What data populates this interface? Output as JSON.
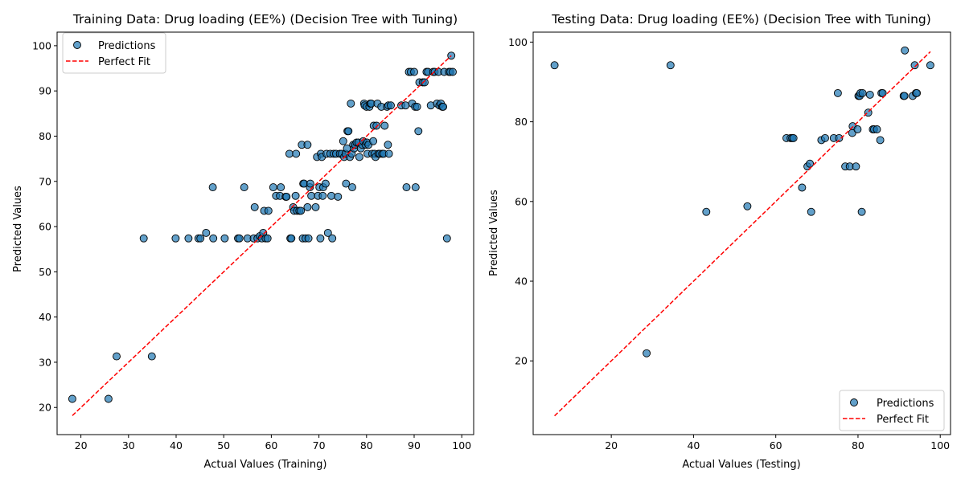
{
  "figure": {
    "background": "#ffffff"
  },
  "chart_data": [
    {
      "type": "scatter",
      "title": "Training Data: Drug loading (EE%) (Decision Tree with Tuning)",
      "xlabel": "Actual Values (Training)",
      "ylabel": "Predicted Values",
      "xlim": [
        15,
        102.5
      ],
      "ylim": [
        14,
        103
      ],
      "xticks": [
        20,
        30,
        40,
        50,
        60,
        70,
        80,
        90,
        100
      ],
      "yticks": [
        20,
        30,
        40,
        50,
        60,
        70,
        80,
        90,
        100
      ],
      "grid": false,
      "legend_position": "top-left",
      "legend": [
        "Predictions",
        "Perfect Fit"
      ],
      "fit_line": {
        "name": "Perfect Fit",
        "x": [
          18.2,
          97.8
        ],
        "y": [
          18.2,
          97.8
        ],
        "color": "#ff0000",
        "style": "dashed"
      },
      "series": [
        {
          "name": "Predictions",
          "color": "#1f77b4",
          "points": [
            [
              18.2,
              21.9
            ],
            [
              25.8,
              21.9
            ],
            [
              27.5,
              31.3
            ],
            [
              34.9,
              31.3
            ],
            [
              33.2,
              57.4
            ],
            [
              39.9,
              57.4
            ],
            [
              42.6,
              57.4
            ],
            [
              44.7,
              57.4
            ],
            [
              45.1,
              57.4
            ],
            [
              46.3,
              58.6
            ],
            [
              47.8,
              57.4
            ],
            [
              50.2,
              57.4
            ],
            [
              53.0,
              57.4
            ],
            [
              53.3,
              57.4
            ],
            [
              55.0,
              57.4
            ],
            [
              56.3,
              57.4
            ],
            [
              57.1,
              57.4
            ],
            [
              57.6,
              57.9
            ],
            [
              58.0,
              57.4
            ],
            [
              58.3,
              58.6
            ],
            [
              58.8,
              57.4
            ],
            [
              59.2,
              57.4
            ],
            [
              47.7,
              68.7
            ],
            [
              54.3,
              68.7
            ],
            [
              56.5,
              64.3
            ],
            [
              58.5,
              63.5
            ],
            [
              59.4,
              63.5
            ],
            [
              60.4,
              68.7
            ],
            [
              61.0,
              66.8
            ],
            [
              61.8,
              66.8
            ],
            [
              62.0,
              68.7
            ],
            [
              63.0,
              66.6
            ],
            [
              63.2,
              66.6
            ],
            [
              63.8,
              76.1
            ],
            [
              64.0,
              57.4
            ],
            [
              64.2,
              57.4
            ],
            [
              64.6,
              64.3
            ],
            [
              64.8,
              63.5
            ],
            [
              65.1,
              66.8
            ],
            [
              65.2,
              76.1
            ],
            [
              65.4,
              63.5
            ],
            [
              65.9,
              63.5
            ],
            [
              66.2,
              63.5
            ],
            [
              66.4,
              78.1
            ],
            [
              66.6,
              57.4
            ],
            [
              66.7,
              69.5
            ],
            [
              66.9,
              69.5
            ],
            [
              67.2,
              57.4
            ],
            [
              67.6,
              78.1
            ],
            [
              67.6,
              64.3
            ],
            [
              67.8,
              57.4
            ],
            [
              68.1,
              68.7
            ],
            [
              68.2,
              69.5
            ],
            [
              68.4,
              66.8
            ],
            [
              69.3,
              64.3
            ],
            [
              69.6,
              75.4
            ],
            [
              69.8,
              66.8
            ],
            [
              70.1,
              68.7
            ],
            [
              70.3,
              57.4
            ],
            [
              70.4,
              76.1
            ],
            [
              70.6,
              75.4
            ],
            [
              70.8,
              66.8
            ],
            [
              70.9,
              68.7
            ],
            [
              71.4,
              69.5
            ],
            [
              71.6,
              76.1
            ],
            [
              71.9,
              58.6
            ],
            [
              72.4,
              76.1
            ],
            [
              72.6,
              66.8
            ],
            [
              72.8,
              57.4
            ],
            [
              73.1,
              76.1
            ],
            [
              73.6,
              76.1
            ],
            [
              74.0,
              66.6
            ],
            [
              74.4,
              76.1
            ],
            [
              74.8,
              76.1
            ],
            [
              75.1,
              78.9
            ],
            [
              75.3,
              75.4
            ],
            [
              75.6,
              76.1
            ],
            [
              75.7,
              69.5
            ],
            [
              75.9,
              77.3
            ],
            [
              76.0,
              81.1
            ],
            [
              76.2,
              81.1
            ],
            [
              76.5,
              75.4
            ],
            [
              76.7,
              87.2
            ],
            [
              76.9,
              76.1
            ],
            [
              77.0,
              68.7
            ],
            [
              77.2,
              78.1
            ],
            [
              77.4,
              77.3
            ],
            [
              77.6,
              78.1
            ],
            [
              77.9,
              78.6
            ],
            [
              78.3,
              78.6
            ],
            [
              78.5,
              75.4
            ],
            [
              78.8,
              77.3
            ],
            [
              79.1,
              78.1
            ],
            [
              79.3,
              78.9
            ],
            [
              79.5,
              87.2
            ],
            [
              79.6,
              86.8
            ],
            [
              79.8,
              78.1
            ],
            [
              80.0,
              86.5
            ],
            [
              80.1,
              78.6
            ],
            [
              80.2,
              76.1
            ],
            [
              80.4,
              78.1
            ],
            [
              80.6,
              86.5
            ],
            [
              80.8,
              87.2
            ],
            [
              81.0,
              87.2
            ],
            [
              81.2,
              76.1
            ],
            [
              81.4,
              78.9
            ],
            [
              81.5,
              82.3
            ],
            [
              81.7,
              76.1
            ],
            [
              81.9,
              75.4
            ],
            [
              82.1,
              82.3
            ],
            [
              82.3,
              87.2
            ],
            [
              82.5,
              76.1
            ],
            [
              82.8,
              76.1
            ],
            [
              83.1,
              86.5
            ],
            [
              83.3,
              76.1
            ],
            [
              83.6,
              76.1
            ],
            [
              83.8,
              82.3
            ],
            [
              84.3,
              86.5
            ],
            [
              84.5,
              78.1
            ],
            [
              84.6,
              86.8
            ],
            [
              84.7,
              76.1
            ],
            [
              85.1,
              86.8
            ],
            [
              87.3,
              86.8
            ],
            [
              88.2,
              86.8
            ],
            [
              88.4,
              68.7
            ],
            [
              88.9,
              94.2
            ],
            [
              89.3,
              94.2
            ],
            [
              89.6,
              87.2
            ],
            [
              90.0,
              94.2
            ],
            [
              90.2,
              86.5
            ],
            [
              90.3,
              68.7
            ],
            [
              90.6,
              86.5
            ],
            [
              90.9,
              81.1
            ],
            [
              91.1,
              91.9
            ],
            [
              91.8,
              91.9
            ],
            [
              92.2,
              91.9
            ],
            [
              92.6,
              94.2
            ],
            [
              92.9,
              94.2
            ],
            [
              93.5,
              86.8
            ],
            [
              94.0,
              94.2
            ],
            [
              94.3,
              94.2
            ],
            [
              94.8,
              87.2
            ],
            [
              95.1,
              94.2
            ],
            [
              95.3,
              86.8
            ],
            [
              95.6,
              87.2
            ],
            [
              95.9,
              86.5
            ],
            [
              96.1,
              86.5
            ],
            [
              96.3,
              94.2
            ],
            [
              96.9,
              57.4
            ],
            [
              97.3,
              94.2
            ],
            [
              97.6,
              94.2
            ],
            [
              97.8,
              97.8
            ],
            [
              98.1,
              94.2
            ]
          ]
        }
      ]
    },
    {
      "type": "scatter",
      "title": "Testing Data: Drug loading (EE%) (Decision Tree with Tuning)",
      "xlabel": "Actual Values (Testing)",
      "ylabel": "Predicted Values",
      "xlim": [
        1.0,
        102.5
      ],
      "ylim": [
        1.5,
        102.5
      ],
      "xticks": [
        20,
        40,
        60,
        80,
        100
      ],
      "yticks": [
        20,
        40,
        60,
        80,
        100
      ],
      "grid": false,
      "legend_position": "bottom-right",
      "legend": [
        "Predictions",
        "Perfect Fit"
      ],
      "fit_line": {
        "name": "Perfect Fit",
        "x": [
          6.2,
          97.6
        ],
        "y": [
          6.2,
          97.6
        ],
        "color": "#ff0000",
        "style": "dashed"
      },
      "series": [
        {
          "name": "Predictions",
          "color": "#1f77b4",
          "points": [
            [
              6.2,
              94.2
            ],
            [
              28.6,
              21.9
            ],
            [
              34.4,
              94.2
            ],
            [
              43.1,
              57.4
            ],
            [
              53.1,
              58.8
            ],
            [
              62.6,
              75.9
            ],
            [
              63.6,
              75.9
            ],
            [
              64.0,
              75.9
            ],
            [
              64.3,
              75.9
            ],
            [
              66.4,
              63.5
            ],
            [
              67.7,
              68.8
            ],
            [
              68.3,
              69.5
            ],
            [
              68.6,
              57.4
            ],
            [
              71.1,
              75.4
            ],
            [
              72.0,
              75.9
            ],
            [
              74.1,
              75.9
            ],
            [
              75.1,
              87.2
            ],
            [
              75.4,
              75.9
            ],
            [
              76.9,
              68.8
            ],
            [
              78.0,
              68.8
            ],
            [
              78.6,
              77.2
            ],
            [
              78.7,
              78.9
            ],
            [
              79.5,
              68.8
            ],
            [
              79.9,
              78.1
            ],
            [
              80.1,
              86.5
            ],
            [
              80.4,
              86.5
            ],
            [
              80.6,
              87.2
            ],
            [
              80.9,
              57.4
            ],
            [
              81.1,
              87.2
            ],
            [
              82.5,
              82.3
            ],
            [
              82.9,
              86.8
            ],
            [
              83.6,
              78.1
            ],
            [
              83.9,
              78.1
            ],
            [
              84.6,
              78.1
            ],
            [
              85.4,
              75.4
            ],
            [
              85.7,
              87.2
            ],
            [
              86.0,
              87.2
            ],
            [
              91.1,
              86.5
            ],
            [
              91.3,
              86.5
            ],
            [
              91.4,
              97.9
            ],
            [
              93.3,
              86.5
            ],
            [
              93.8,
              94.2
            ],
            [
              94.1,
              87.2
            ],
            [
              94.3,
              87.2
            ],
            [
              97.6,
              94.2
            ]
          ]
        }
      ]
    }
  ]
}
